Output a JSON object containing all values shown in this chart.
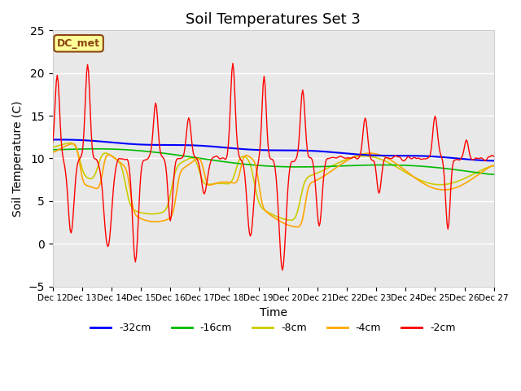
{
  "title": "Soil Temperatures Set 3",
  "xlabel": "Time",
  "ylabel": "Soil Temperature (C)",
  "ylim": [
    -5,
    25
  ],
  "yticks": [
    -5,
    0,
    5,
    10,
    15,
    20,
    25
  ],
  "xlim": [
    0,
    480
  ],
  "x_tick_labels": [
    "Dec 12",
    "Dec 13",
    "Dec 14",
    "Dec 15",
    "Dec 16",
    "Dec 17",
    "Dec 18",
    "Dec 19",
    "Dec 20",
    "Dec 21",
    "Dec 22",
    "Dec 23",
    "Dec 24",
    "Dec 25",
    "Dec 26",
    "Dec 27"
  ],
  "x_tick_positions": [
    0,
    32,
    64,
    96,
    128,
    160,
    192,
    224,
    256,
    288,
    320,
    352,
    384,
    416,
    448,
    480
  ],
  "series_colors": [
    "blue",
    "#00cc00",
    "yellow",
    "orange",
    "red"
  ],
  "series_labels": [
    "-32cm",
    "-16cm",
    "-8cm",
    "-4cm",
    "-2cm"
  ],
  "background_color": "#e8e8e8",
  "dc_met_label": "DC_met",
  "dc_met_box_color": "#ffff99",
  "dc_met_text_color": "#8B4513",
  "grid_color": "white",
  "title_fontsize": 13
}
